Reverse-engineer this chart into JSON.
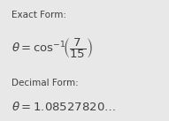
{
  "bg_color": "#e8e8e8",
  "text_color": "#404040",
  "exact_form_label": "Exact Form:",
  "decimal_form_label": "Decimal Form:",
  "label_fontsize": 7.5,
  "eq_fontsize": 9.5,
  "label_color": "#505050",
  "figsize": [
    1.91,
    1.37
  ],
  "dpi": 100
}
